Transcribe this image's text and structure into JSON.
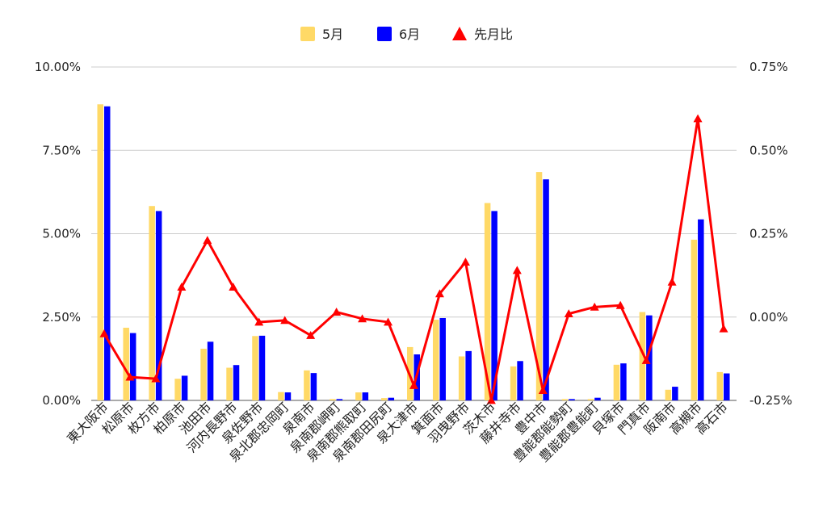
{
  "chart_data": {
    "type": "bar",
    "categories": [
      "東大阪市",
      "松原市",
      "枚方市",
      "柏原市",
      "池田市",
      "河内長野市",
      "泉佐野市",
      "泉北郡忠岡町",
      "泉南市",
      "泉南郡岬町",
      "泉南郡熊取町",
      "泉南郡田尻町",
      "泉大津市",
      "箕面市",
      "羽曳野市",
      "茨木市",
      "藤井寺市",
      "豊中市",
      "豊能郡能勢町",
      "豊能郡豊能町",
      "貝塚市",
      "門真市",
      "阪南市",
      "高槻市",
      "高石市"
    ],
    "series": [
      {
        "name": "5月",
        "kind": "bar",
        "axis": "left",
        "color": "#FFD966",
        "values": [
          8.88,
          2.18,
          5.83,
          0.65,
          1.55,
          0.98,
          1.93,
          0.25,
          0.9,
          0.04,
          0.24,
          0.07,
          1.6,
          2.42,
          1.32,
          5.92,
          1.02,
          6.85,
          0.04,
          0.04,
          1.07,
          2.65,
          0.32,
          4.82,
          0.85
        ]
      },
      {
        "name": "6月",
        "kind": "bar",
        "axis": "left",
        "color": "#0000FF",
        "values": [
          8.82,
          2.02,
          5.68,
          0.74,
          1.76,
          1.06,
          1.94,
          0.24,
          0.82,
          0.04,
          0.24,
          0.08,
          1.38,
          2.47,
          1.48,
          5.68,
          1.18,
          6.63,
          0.04,
          0.08,
          1.11,
          2.55,
          0.41,
          5.43,
          0.81
        ]
      },
      {
        "name": "先月比",
        "kind": "line",
        "axis": "right",
        "color": "#FF0000",
        "values": [
          -0.05,
          -0.18,
          -0.185,
          0.09,
          0.23,
          0.09,
          -0.015,
          -0.01,
          -0.055,
          0.015,
          -0.005,
          -0.015,
          -0.205,
          0.07,
          0.165,
          -0.25,
          0.14,
          -0.22,
          0.01,
          0.03,
          0.035,
          -0.13,
          0.105,
          0.595,
          -0.035
        ]
      }
    ],
    "y_left": {
      "min": 0,
      "max": 10,
      "ticks": [
        "0.00%",
        "2.50%",
        "5.00%",
        "7.50%",
        "10.00%"
      ],
      "tick_values": [
        0,
        2.5,
        5,
        7.5,
        10
      ]
    },
    "y_right": {
      "min": -0.25,
      "max": 0.75,
      "ticks": [
        "-0.25%",
        "0.00%",
        "0.25%",
        "0.50%",
        "0.75%"
      ],
      "tick_values": [
        -0.25,
        0,
        0.25,
        0.5,
        0.75
      ]
    },
    "grid": true,
    "legend_position": "top"
  }
}
